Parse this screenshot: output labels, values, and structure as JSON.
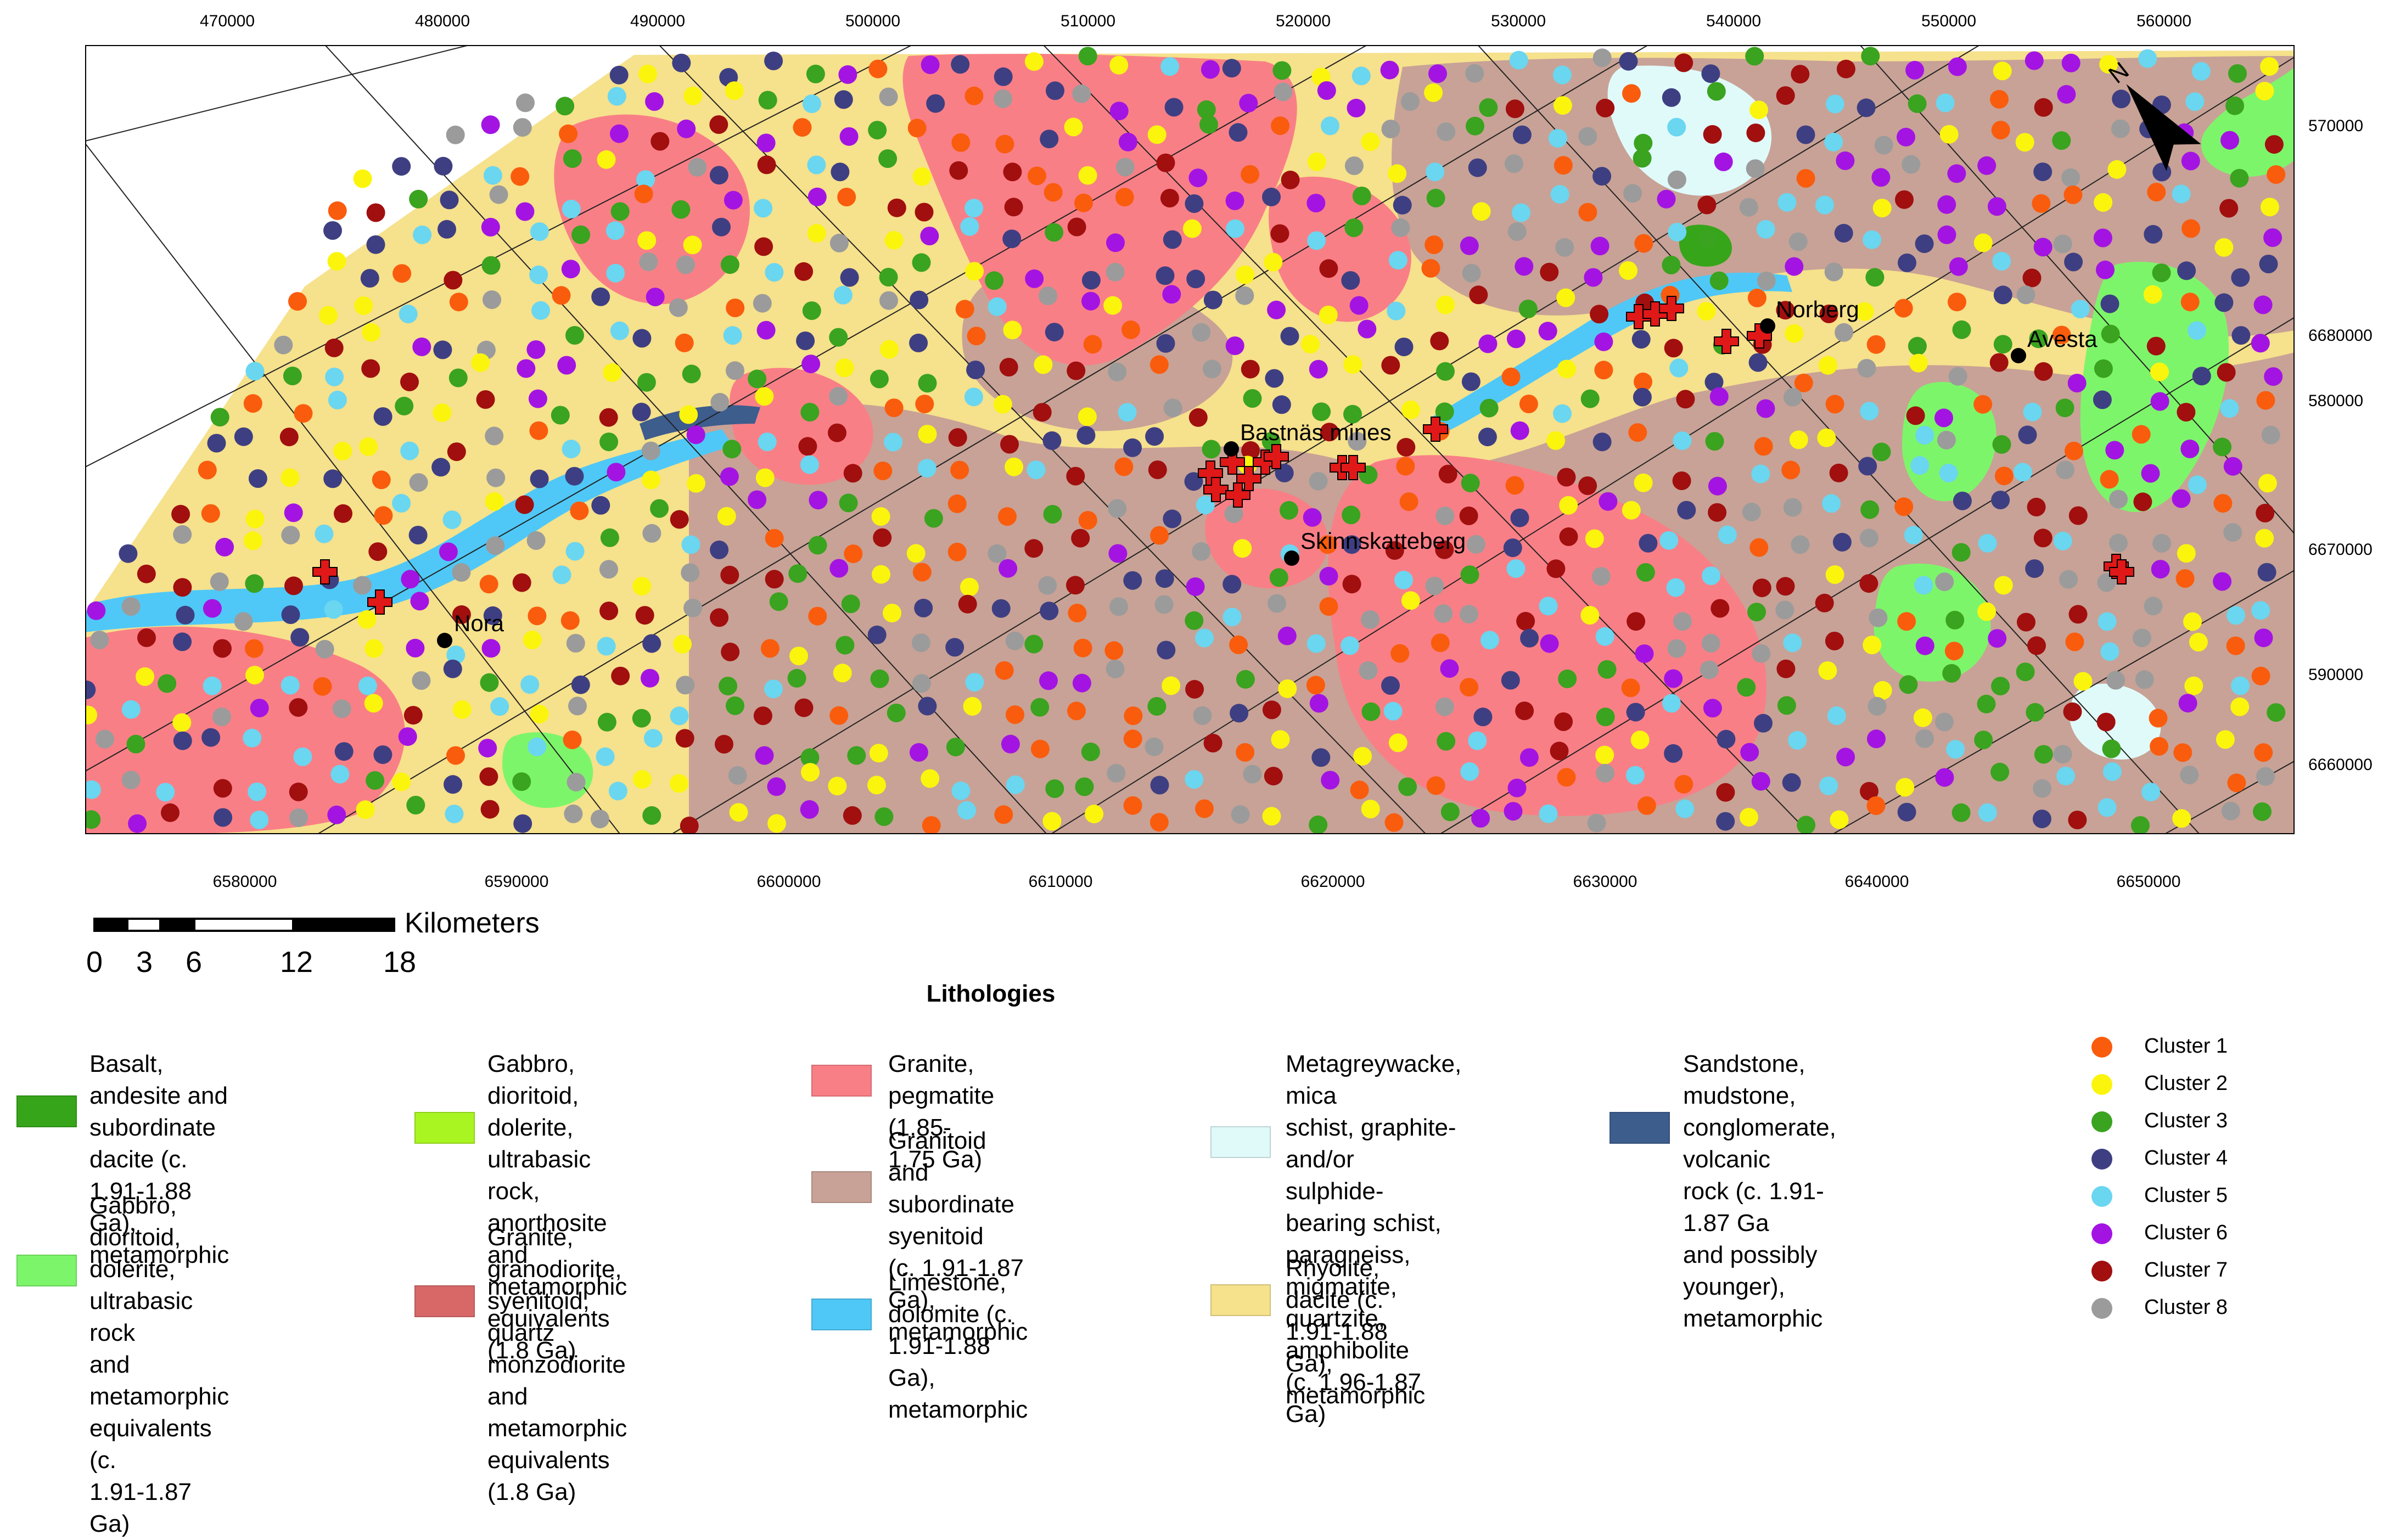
{
  "colors": {
    "basalt": "#37a51a",
    "gabbro_metamorphic": "#7df56a",
    "gabbro_18": "#a9f521",
    "granite_granodiorite": "#d86868",
    "granite_pegmatite": "#f97f86",
    "granitoid": "#c8a296",
    "limestone": "#4fc8f7",
    "metagreywacke": "#e0fafa",
    "rhyolite": "#f6e18c",
    "sandstone": "#3d5d8d",
    "cluster_1": "#fa5c0d",
    "cluster_2": "#fbf50d",
    "cluster_3": "#3aa31f",
    "cluster_4": "#3e3f82",
    "cluster_5": "#6ad6f0",
    "cluster_6": "#a314e3",
    "cluster_7": "#a10f0f",
    "cluster_8": "#9b9b9b",
    "mine_marker": "#e01818"
  },
  "coords": {
    "top": [
      "470000",
      "480000",
      "490000",
      "500000",
      "510000",
      "520000",
      "530000",
      "540000",
      "550000",
      "560000"
    ],
    "bottom": [
      "6580000",
      "6590000",
      "6600000",
      "6610000",
      "6620000",
      "6630000",
      "6640000",
      "6650000"
    ],
    "right": [
      "570000",
      "6680000",
      "580000",
      "6670000",
      "590000",
      "6660000"
    ]
  },
  "places": [
    {
      "name": "Nora"
    },
    {
      "name": "Bastnäs mines"
    },
    {
      "name": "Skinnskatteberg"
    },
    {
      "name": "Norberg"
    },
    {
      "name": "Avesta"
    }
  ],
  "north_arrow": {
    "label": "N",
    "icon": "north-arrow-icon"
  },
  "scale": {
    "units": "Kilometers",
    "ticks": [
      "0",
      "3",
      "6",
      "12",
      "18"
    ]
  },
  "legend": {
    "title": "Lithologies",
    "lithologies": [
      {
        "key": "basalt",
        "text": "Basalt, andesite and\nsubordinate dacite (c.\n1.91-1.88 Ga),\nmetamorphic"
      },
      {
        "key": "gabbro_metamorphic",
        "text": "Gabbro, dioritoid,\ndolerite, ultrabasic rock\nand metamorphic\nequivalents (c.\n1.91-1.87 Ga)"
      },
      {
        "key": "gabbro_18",
        "text": "Gabbro, dioritoid,\ndolerite, ultrabasic rock,\nanorthosite and\nmetamorphic\nequivalents (1.8 Ga)"
      },
      {
        "key": "granite_granodiorite",
        "text": "Granite, granodiorite,\nsyenitoid, quartz\nmonzodiorite and\nmetamorphic\nequivalents (1.8 Ga)"
      },
      {
        "key": "granite_pegmatite",
        "text": "Granite, pegmatite\n(1.85-1.75 Ga)"
      },
      {
        "key": "granitoid",
        "text": "Granitoid and\nsubordinate syenitoid\n(c. 1.91-1.87 Ga),\nmetamorphic"
      },
      {
        "key": "limestone",
        "text": "Limestone, dolomite (c.\n1.91-1.88 Ga),\nmetamorphic"
      },
      {
        "key": "metagreywacke",
        "text": "Metagreywacke, mica\nschist, graphite- and/or\nsulphide-bearing schist,\nparagneiss, migmatite,\nquartzite, amphibolite\n(c. 1.96-1.87 Ga)"
      },
      {
        "key": "rhyolite",
        "text": "Rhyolite, dacite (c.\n1.91-1.88 Ga),\nmetamorphic"
      },
      {
        "key": "sandstone",
        "text": "Sandstone, mudstone,\nconglomerate, volcanic\nrock (c. 1.91-1.87 Ga\nand possibly younger),\nmetamorphic"
      }
    ],
    "clusters": [
      "Cluster 1",
      "Cluster 2",
      "Cluster 3",
      "Cluster 4",
      "Cluster 5",
      "Cluster 6",
      "Cluster 7",
      "Cluster 8"
    ]
  }
}
